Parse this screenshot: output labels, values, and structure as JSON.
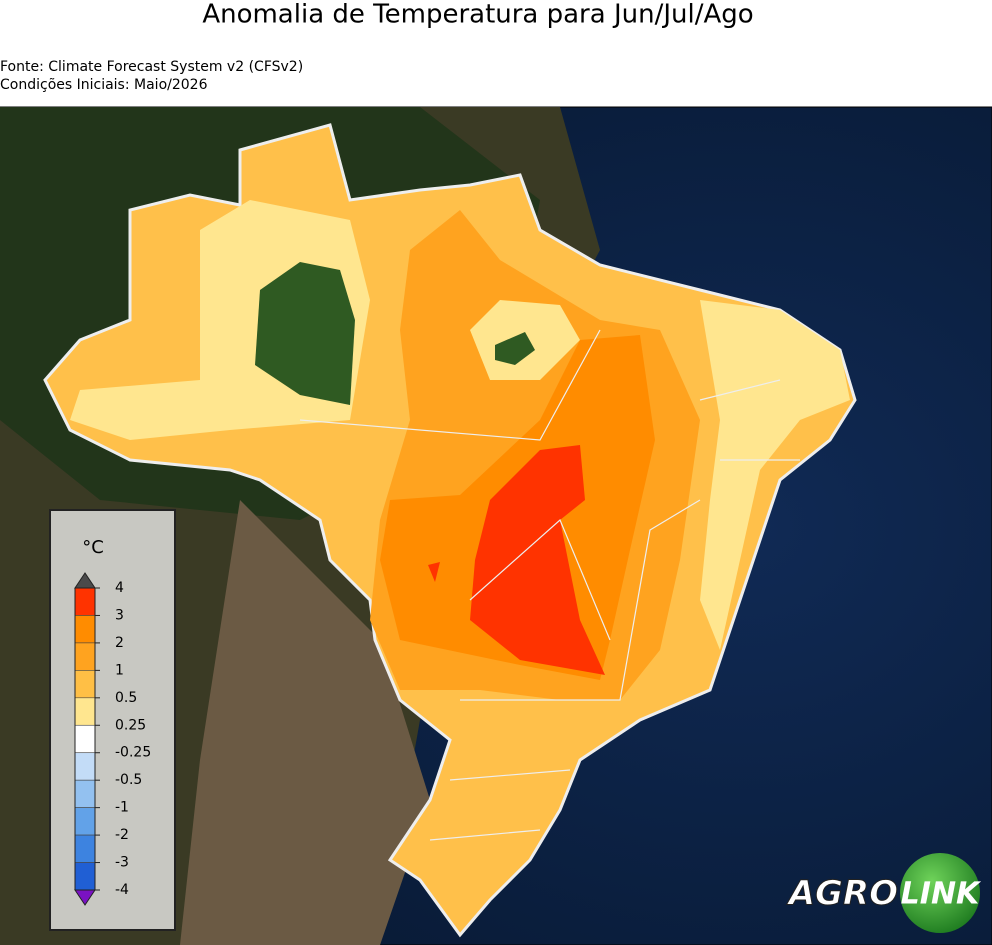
{
  "header": {
    "title": "Anomalia de Temperatura para Jun/Jul/Ago",
    "source": "Fonte: Climate Forecast System v2 (CFSv2)",
    "initial": "Condições Iniciais: Maio/2026"
  },
  "legend": {
    "unit": "°C",
    "ticks": [
      4,
      3,
      2,
      1,
      0.5,
      0.25,
      -0.25,
      -0.5,
      -1,
      -2,
      -3,
      -4
    ],
    "colors": [
      "#ff3300",
      "#ff8c00",
      "#ffa31f",
      "#ffbf45",
      "#ffe68f",
      "#ffffff",
      "#c3dcf7",
      "#93c1f0",
      "#62a2e8",
      "#3d83e0",
      "#205fd4"
    ],
    "over_color": "#4a4a4a",
    "under_color": "#7a12c2"
  },
  "logo": {
    "left": "AGRO",
    "right": "LINK"
  }
}
